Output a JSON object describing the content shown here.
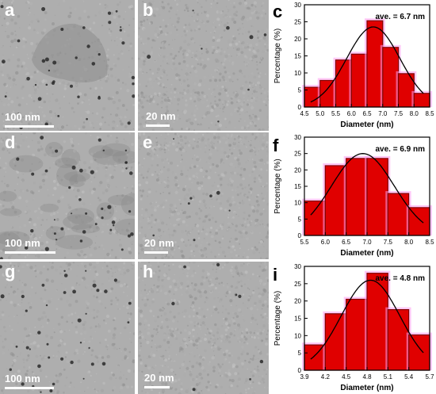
{
  "panels": [
    {
      "letter": "a",
      "scale": "100 nm"
    },
    {
      "letter": "b",
      "scale": "20 nm"
    },
    {
      "letter": "d",
      "scale": "100 nm"
    },
    {
      "letter": "e",
      "scale": "20 nm"
    },
    {
      "letter": "g",
      "scale": "100 nm"
    },
    {
      "letter": "h",
      "scale": "20 nm"
    }
  ],
  "chart_data": [
    {
      "type": "bar",
      "letter": "c",
      "annotation": "ave. = 6.7 nm",
      "xlabel": "Diameter (nm)",
      "ylabel": "Percentage (%)",
      "xlim": [
        4.5,
        8.5
      ],
      "ylim": [
        0,
        30
      ],
      "xticks": [
        4.5,
        5.0,
        5.5,
        6.0,
        6.5,
        7.0,
        7.5,
        8.0,
        8.5
      ],
      "xtick_labels": [
        "4.5",
        "5.0",
        "5.5",
        "6.0",
        "6.5",
        "7.0",
        "7.5",
        "8.0",
        "8.5"
      ],
      "yticks": [
        0,
        5,
        10,
        15,
        20,
        25,
        30
      ],
      "bar_width": 0.5,
      "x": [
        4.75,
        5.25,
        5.75,
        6.25,
        6.75,
        7.25,
        7.75,
        8.25
      ],
      "values": [
        5.8,
        7.8,
        13.8,
        15.5,
        25.3,
        17.5,
        9.8,
        4.0
      ],
      "fit": {
        "mean": 6.7,
        "sigma": 0.85,
        "amp": 23.5
      }
    },
    {
      "type": "bar",
      "letter": "f",
      "annotation": "ave. = 6.9 nm",
      "xlabel": "Diameter (nm)",
      "ylabel": "Percentage (%)",
      "xlim": [
        5.5,
        8.5
      ],
      "ylim": [
        0,
        30
      ],
      "xticks": [
        5.5,
        6.0,
        6.5,
        7.0,
        7.5,
        8.0,
        8.5
      ],
      "xtick_labels": [
        "5.5",
        "6.0",
        "6.5",
        "7.0",
        "7.5",
        "8.0",
        "8.5"
      ],
      "yticks": [
        0,
        5,
        10,
        15,
        20,
        25,
        30
      ],
      "bar_width": 0.5,
      "x": [
        5.75,
        6.25,
        6.75,
        7.25,
        7.75,
        8.25
      ],
      "values": [
        10.5,
        21.3,
        23.5,
        23.5,
        12.8,
        8.5
      ],
      "fit": {
        "mean": 6.9,
        "sigma": 0.75,
        "amp": 25.0
      }
    },
    {
      "type": "bar",
      "letter": "i",
      "annotation": "ave. = 4.8 nm",
      "xlabel": "Diameter (nm)",
      "ylabel": "Percentage (%)",
      "xlim": [
        3.9,
        5.7
      ],
      "ylim": [
        0,
        30
      ],
      "xticks": [
        3.9,
        4.2,
        4.5,
        4.8,
        5.1,
        5.4,
        5.7
      ],
      "xtick_labels": [
        "3.9",
        "4.2",
        "4.5",
        "4.8",
        "5.1",
        "5.4",
        "5.7"
      ],
      "yticks": [
        0,
        5,
        10,
        15,
        20,
        25,
        30
      ],
      "bar_width": 0.3,
      "x": [
        4.05,
        4.35,
        4.65,
        4.95,
        5.25,
        5.55
      ],
      "values": [
        7.3,
        16.3,
        20.5,
        28.0,
        17.5,
        10.2
      ],
      "fit": {
        "mean": 4.85,
        "sigma": 0.42,
        "amp": 26.0
      }
    }
  ],
  "colors": {
    "bar_fill": "#e00000",
    "bar_edge": "#800000",
    "bar_glow": "#ff9cf0",
    "fit_line": "#000000",
    "tem_background": "#a9a9a9"
  }
}
